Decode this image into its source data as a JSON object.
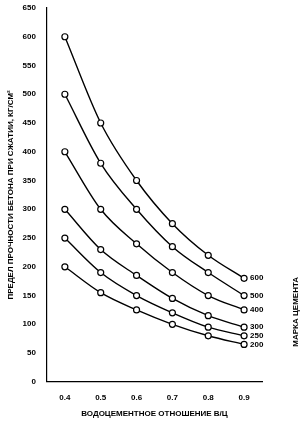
{
  "chart_data": {
    "type": "line",
    "x_label": "ВОДОЦЕМЕНТНОЕ ОТНОШЕНИЕ В/Ц",
    "y_label": "ПРЕДЕЛ ПРОЧНОСТИ БЕТОНА ПРИ СЖАТИИ, КГ/СМ²",
    "annotations": [
      "МАРКА ЦЕМЕНТА"
    ],
    "x": [
      0.4,
      0.5,
      0.6,
      0.7,
      0.8,
      0.9
    ],
    "series": [
      {
        "name": "600",
        "color": "#000000",
        "values": [
          600,
          450,
          350,
          275,
          220,
          180
        ]
      },
      {
        "name": "500",
        "color": "#000000",
        "values": [
          500,
          380,
          300,
          235,
          190,
          150
        ]
      },
      {
        "name": "400",
        "color": "#000000",
        "values": [
          400,
          300,
          240,
          190,
          150,
          125
        ]
      },
      {
        "name": "300",
        "color": "#000000",
        "values": [
          300,
          230,
          185,
          145,
          115,
          95
        ]
      },
      {
        "name": "250",
        "color": "#000000",
        "values": [
          250,
          190,
          150,
          120,
          95,
          80
        ]
      },
      {
        "name": "200",
        "color": "#000000",
        "values": [
          200,
          155,
          125,
          100,
          80,
          65
        ]
      }
    ],
    "xlim": [
      0.35,
      0.95
    ],
    "xticks": [
      0.4,
      0.5,
      0.6,
      0.7,
      0.8,
      0.9
    ],
    "ylim": [
      0,
      650
    ],
    "yticks": [
      0,
      50,
      100,
      150,
      200,
      250,
      300,
      350,
      400,
      450,
      500,
      550,
      600,
      650
    ],
    "marker": "circle",
    "grid": false
  }
}
